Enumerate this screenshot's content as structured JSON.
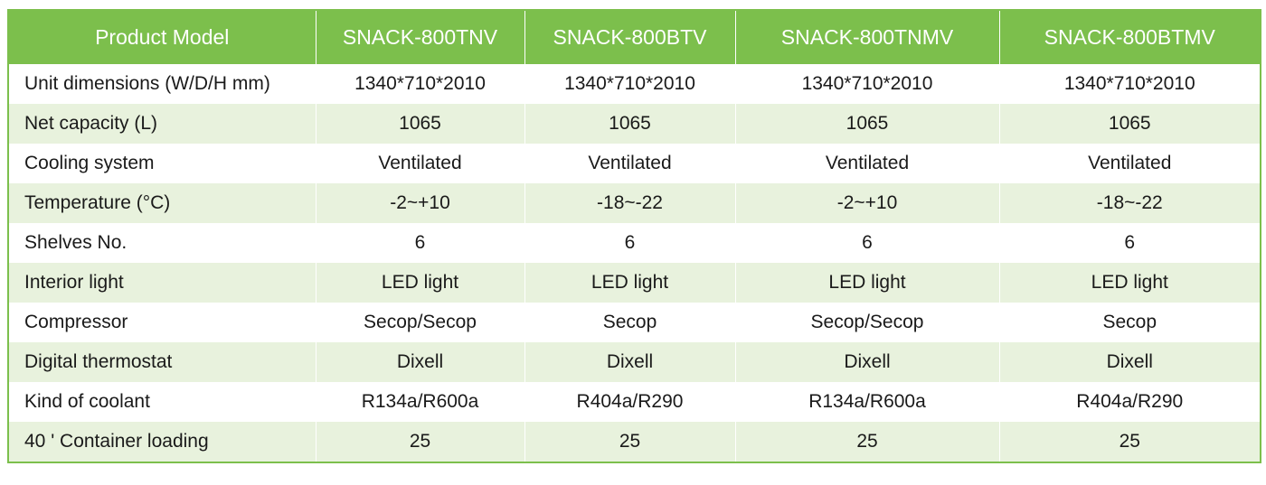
{
  "header": {
    "label": "Product Model",
    "models": [
      "SNACK-800TNV",
      "SNACK-800BTV",
      "SNACK-800TNMV",
      "SNACK-800BTMV"
    ]
  },
  "rows": [
    {
      "label": "Unit dimensions (W/D/H mm)",
      "values": [
        "1340*710*2010",
        "1340*710*2010",
        "1340*710*2010",
        "1340*710*2010"
      ]
    },
    {
      "label": "Net capacity (L)",
      "values": [
        "1065",
        "1065",
        "1065",
        "1065"
      ]
    },
    {
      "label": "Cooling system",
      "values": [
        "Ventilated",
        "Ventilated",
        "Ventilated",
        "Ventilated"
      ]
    },
    {
      "label": "Temperature (°C)",
      "values": [
        "-2~+10",
        "-18~-22",
        "-2~+10",
        "-18~-22"
      ]
    },
    {
      "label": "Shelves No.",
      "values": [
        "6",
        "6",
        "6",
        "6"
      ]
    },
    {
      "label": "Interior light",
      "values": [
        "LED light",
        "LED light",
        "LED light",
        "LED light"
      ]
    },
    {
      "label": "Compressor",
      "values": [
        "Secop/Secop",
        "Secop",
        "Secop/Secop",
        "Secop"
      ]
    },
    {
      "label": "Digital thermostat",
      "values": [
        "Dixell",
        "Dixell",
        "Dixell",
        "Dixell"
      ]
    },
    {
      "label": "Kind of coolant",
      "values": [
        "R134a/R600a",
        "R404a/R290",
        "R134a/R600a",
        "R404a/R290"
      ]
    },
    {
      "label": "40 ' Container loading",
      "values": [
        "25",
        "25",
        "25",
        "25"
      ]
    }
  ],
  "colors": {
    "header_bg": "#7cbf4c",
    "header_text": "#ffffff",
    "stripe": "#e8f2dd"
  }
}
